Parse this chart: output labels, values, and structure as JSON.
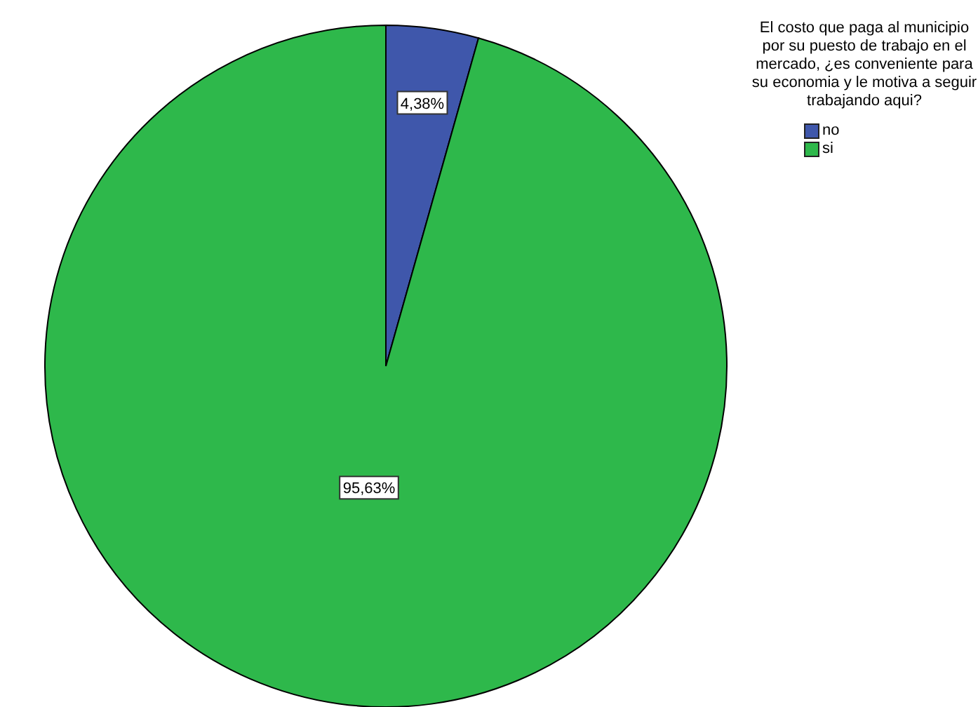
{
  "chart_data": {
    "type": "pie",
    "legend_title": "El costo que paga al municipio por su puesto de trabajo en el mercado, ¿es conveniente para su economia y le motiva a seguir trabajando aqui?",
    "categories": [
      "no",
      "si"
    ],
    "values": [
      4.38,
      95.63
    ],
    "colors": [
      "#3f57ab",
      "#2eb84b"
    ],
    "value_labels": [
      "4,38%",
      "95,63%"
    ],
    "legend": "top right"
  }
}
